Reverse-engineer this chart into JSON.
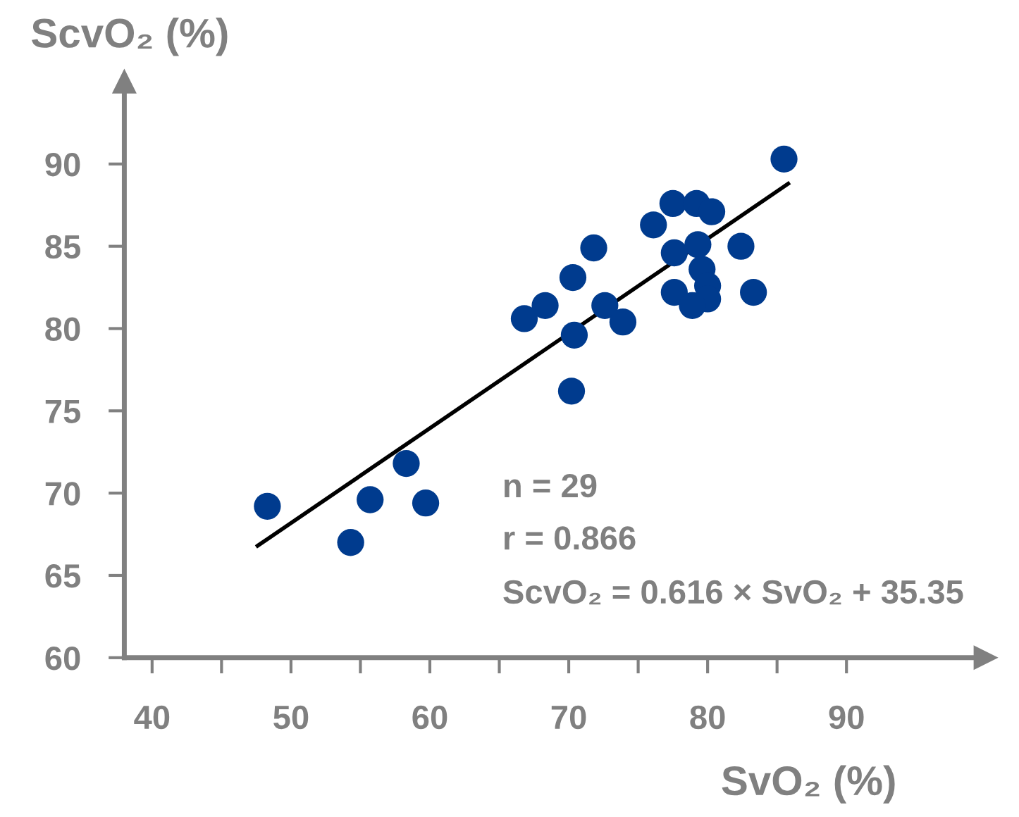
{
  "chart_data": {
    "type": "scatter",
    "xlabel": "SvO₂ (%)",
    "ylabel": "ScvO₂ (%)",
    "xlim": [
      38,
      100
    ],
    "ylim": [
      60,
      95
    ],
    "xticks": [
      40,
      {
        "value": 45,
        "label": null
      },
      50,
      {
        "value": 55,
        "label": null
      },
      60,
      {
        "value": 65,
        "label": null
      },
      70,
      {
        "value": 75,
        "label": null
      },
      80,
      {
        "value": 85,
        "label": null
      },
      90
    ],
    "yticks": [
      60,
      65,
      70,
      75,
      80,
      85,
      90
    ],
    "grid": false,
    "legend": false,
    "series": [
      {
        "marker": "circle",
        "color": "#003b8e",
        "x": [
          85.5,
          77.5,
          79.2,
          80.3,
          76.1,
          79.3,
          77.6,
          82.4,
          71.8,
          70.3,
          79.6,
          80.0,
          77.6,
          83.3,
          80.0,
          78.9,
          68.3,
          66.8,
          72.6,
          73.9,
          70.4,
          70.2,
          48.3,
          55.7,
          58.3,
          59.7,
          54.3
        ],
        "values": [
          90.3,
          87.6,
          87.6,
          87.1,
          86.3,
          85.1,
          84.6,
          85.0,
          84.9,
          83.1,
          83.6,
          82.6,
          82.2,
          82.2,
          81.8,
          81.4,
          81.4,
          80.6,
          81.4,
          80.4,
          79.6,
          76.2,
          69.2,
          69.6,
          71.8,
          69.4,
          67.0
        ]
      },
      {
        "type": "line",
        "marker": "none",
        "color": "#000000",
        "x": [
          47.6,
          85.8
        ],
        "values": [
          66.8,
          88.8
        ]
      }
    ],
    "annotations": [
      "n = 29",
      "r = 0.866",
      "ScvO₂ = 0.616 × SvO₂ + 35.35"
    ]
  }
}
